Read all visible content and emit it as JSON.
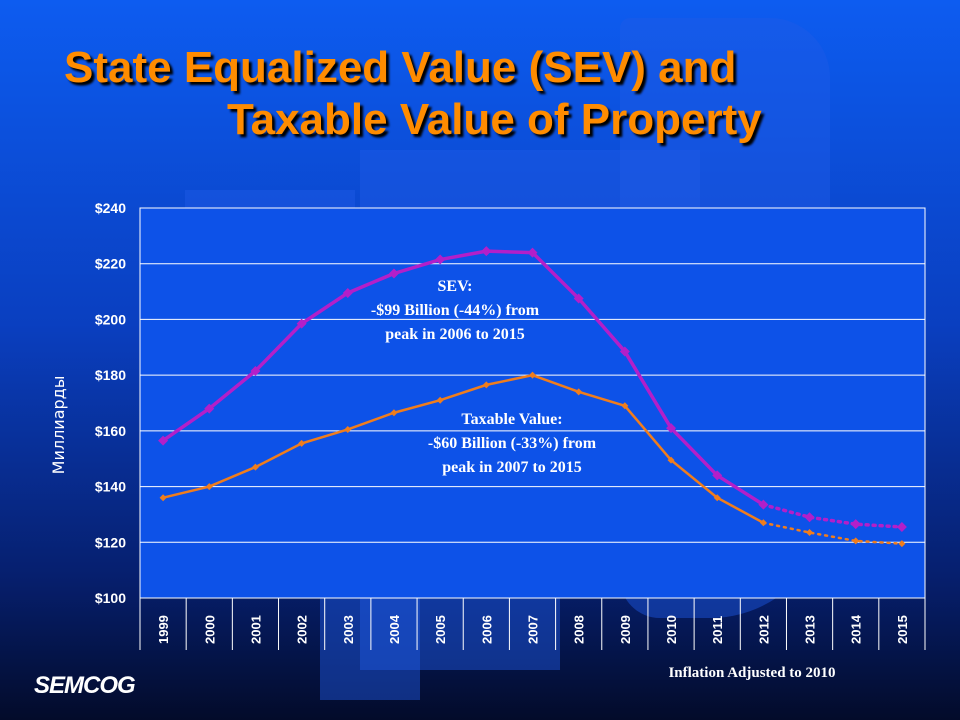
{
  "slide": {
    "title_line1": "State Equalized Value (SEV) and",
    "title_line2": "Taxable Value of Property",
    "logo": "SEMCOG"
  },
  "colors": {
    "title": "#ff8c00",
    "sev": "#b31fc9",
    "taxable": "#f07d1c",
    "plot_background": "#0d52e8",
    "text": "#ffffff"
  },
  "chart_data": {
    "type": "line",
    "title": "",
    "xlabel": "Inflation Adjusted to 2010",
    "ylabel": "Миллиарды",
    "ylim": [
      100,
      240
    ],
    "y_ticks": [
      "$100",
      "$120",
      "$140",
      "$160",
      "$180",
      "$200",
      "$220",
      "$240"
    ],
    "y_tick_values": [
      100,
      120,
      140,
      160,
      180,
      200,
      220,
      240
    ],
    "grid": true,
    "categories": [
      "1999",
      "2000",
      "2001",
      "2002",
      "2003",
      "2004",
      "2005",
      "2006",
      "2007",
      "2008",
      "2009",
      "2010",
      "2011",
      "2012",
      "2013",
      "2014",
      "2015"
    ],
    "series": [
      {
        "name": "SEV",
        "color": "#b31fc9",
        "marker": "diamond",
        "values": [
          156.5,
          168,
          181.5,
          198.5,
          209.5,
          216.5,
          221.5,
          224.5,
          224,
          207.5,
          188.5,
          161,
          144,
          133.5,
          129,
          126.5,
          125.5
        ],
        "dotted_from_index": 13
      },
      {
        "name": "Taxable Value",
        "color": "#f07d1c",
        "marker": "diamond",
        "values": [
          136,
          140,
          147,
          155.5,
          160.5,
          166.5,
          171,
          176.5,
          180,
          174,
          169,
          149.5,
          136,
          127,
          123.5,
          120.5,
          119.5
        ],
        "dotted_from_index": 13
      }
    ],
    "annotations": [
      {
        "lines": [
          "SEV:",
          "-$99 Billion (-44%) from",
          "peak in 2006 to 2015"
        ]
      },
      {
        "lines": [
          "Taxable Value:",
          "-$60 Billion (-33%) from",
          "peak in 2007 to 2015"
        ]
      }
    ]
  }
}
